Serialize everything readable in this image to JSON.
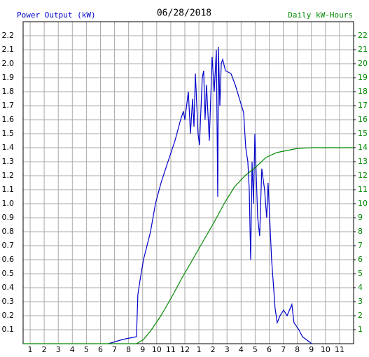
{
  "chart_data": {
    "type": "line",
    "title": "06/28/2018",
    "ylabel": "Power Output (kW)",
    "y2label": "Daily kW-Hours",
    "grid": true,
    "xlim": [
      0.5,
      24
    ],
    "xticks": [
      1,
      2,
      3,
      4,
      5,
      6,
      7,
      8,
      9,
      10,
      11,
      12,
      {
        "value": 13,
        "label": "1"
      },
      {
        "value": 14,
        "label": "2"
      },
      {
        "value": 15,
        "label": "3"
      },
      {
        "value": 16,
        "label": "4"
      },
      {
        "value": 17,
        "label": "5"
      },
      {
        "value": 18,
        "label": "6"
      },
      {
        "value": 19,
        "label": "7"
      },
      {
        "value": 20,
        "label": "8"
      },
      {
        "value": 21,
        "label": "9"
      },
      {
        "value": 22,
        "label": "10"
      },
      {
        "value": 23,
        "label": "11"
      }
    ],
    "ylim": [
      0,
      2.3
    ],
    "yticks": [
      0.1,
      0.2,
      0.3,
      0.4,
      0.5,
      0.6,
      0.7,
      0.8,
      0.9,
      {
        "value": 1,
        "label": "1.0"
      },
      1.1,
      1.2,
      1.3,
      1.4,
      1.5,
      1.6,
      1.7,
      1.8,
      1.9,
      {
        "value": 2,
        "label": "2.0"
      },
      2.1,
      2.2
    ],
    "y2lim": [
      0,
      23
    ],
    "y2ticks": [
      1,
      2,
      3,
      4,
      5,
      6,
      7,
      8,
      9,
      10,
      11,
      12,
      13,
      14,
      15,
      16,
      17,
      18,
      19,
      20,
      21,
      22
    ],
    "series": [
      {
        "name": "Power Output (kW)",
        "color": "#0000cc",
        "x": [
          6.57,
          7.57,
          8.56,
          8.66,
          8.81,
          9.06,
          9.56,
          9.91,
          10.31,
          10.8,
          11.3,
          11.7,
          11.9,
          12.0,
          12.25,
          12.4,
          12.55,
          12.65,
          12.75,
          12.94,
          13.04,
          13.24,
          13.34,
          13.44,
          13.54,
          13.74,
          13.94,
          14.09,
          14.24,
          14.34,
          14.39,
          14.49,
          14.59,
          14.69,
          14.89,
          15.28,
          15.58,
          15.88,
          16.18,
          16.33,
          16.48,
          16.58,
          16.68,
          16.78,
          16.88,
          16.98,
          17.18,
          17.32,
          17.47,
          17.67,
          17.82,
          17.92,
          18.17,
          18.42,
          18.57,
          18.77,
          19.02,
          19.27,
          19.61,
          19.76,
          20.11,
          20.36,
          20.76,
          21.01
        ],
        "values": [
          0,
          0.03,
          0.05,
          0.35,
          0.45,
          0.6,
          0.8,
          1.0,
          1.15,
          1.3,
          1.45,
          1.6,
          1.66,
          1.6,
          1.8,
          1.5,
          1.75,
          1.55,
          1.93,
          1.5,
          1.42,
          1.9,
          1.95,
          1.6,
          1.85,
          1.45,
          2.05,
          1.8,
          2.1,
          1.05,
          2.12,
          1.7,
          2.0,
          2.03,
          1.95,
          1.93,
          1.85,
          1.75,
          1.65,
          1.4,
          1.3,
          1.1,
          0.6,
          1.3,
          1.0,
          1.5,
          0.9,
          0.77,
          1.25,
          1.1,
          0.9,
          1.15,
          0.6,
          0.25,
          0.15,
          0.2,
          0.24,
          0.2,
          0.28,
          0.15,
          0.1,
          0.05,
          0.02,
          0
        ]
      },
      {
        "name": "Daily kW-Hours",
        "color": "#008800",
        "axis": "y2",
        "x": [
          0.5,
          8.56,
          9.06,
          9.56,
          10.3,
          11.05,
          11.8,
          12.55,
          13.29,
          14.04,
          14.79,
          15.53,
          16.28,
          17.03,
          17.77,
          18.52,
          19.27,
          20.01,
          21,
          24
        ],
        "values": [
          0,
          0,
          0.3,
          0.9,
          2.0,
          3.3,
          4.7,
          6.0,
          7.3,
          8.6,
          10.0,
          11.2,
          12.0,
          12.6,
          13.3,
          13.65,
          13.8,
          13.95,
          14,
          14
        ]
      }
    ]
  }
}
